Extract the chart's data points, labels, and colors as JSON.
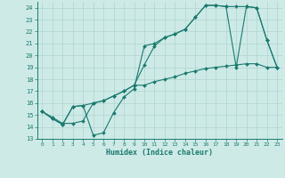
{
  "xlabel": "Humidex (Indice chaleur)",
  "bg_color": "#cdeae7",
  "line_color": "#1a7a6e",
  "grid_color": "#afd4cf",
  "xlim": [
    -0.5,
    23.5
  ],
  "ylim": [
    13,
    24.5
  ],
  "yticks": [
    13,
    14,
    15,
    16,
    17,
    18,
    19,
    20,
    21,
    22,
    23,
    24
  ],
  "xticks": [
    0,
    1,
    2,
    3,
    4,
    5,
    6,
    7,
    8,
    9,
    10,
    11,
    12,
    13,
    14,
    15,
    16,
    17,
    18,
    19,
    20,
    21,
    22,
    23
  ],
  "series1_x": [
    0,
    1,
    2,
    3,
    4,
    5,
    6,
    7,
    8,
    9,
    10,
    11,
    12,
    13,
    14,
    15,
    16,
    17,
    18,
    19,
    20,
    21,
    22,
    23
  ],
  "series1_y": [
    15.3,
    14.7,
    14.2,
    15.7,
    15.8,
    13.3,
    13.5,
    15.2,
    16.5,
    17.2,
    20.8,
    21.0,
    21.5,
    21.8,
    22.2,
    23.2,
    24.2,
    24.2,
    24.1,
    19.0,
    24.1,
    24.0,
    21.3,
    19.0
  ],
  "series2_x": [
    0,
    1,
    2,
    3,
    4,
    5,
    6,
    7,
    8,
    9,
    10,
    11,
    12,
    13,
    14,
    15,
    16,
    17,
    18,
    19,
    20,
    21,
    22,
    23
  ],
  "series2_y": [
    15.3,
    14.7,
    14.2,
    15.7,
    15.8,
    16.0,
    16.2,
    16.6,
    17.0,
    17.5,
    19.2,
    20.8,
    21.5,
    21.8,
    22.2,
    23.2,
    24.2,
    24.2,
    24.1,
    24.1,
    24.1,
    24.0,
    21.3,
    19.0
  ],
  "series3_x": [
    0,
    1,
    2,
    3,
    4,
    5,
    6,
    7,
    8,
    9,
    10,
    11,
    12,
    13,
    14,
    15,
    16,
    17,
    18,
    19,
    20,
    21,
    22,
    23
  ],
  "series3_y": [
    15.3,
    14.8,
    14.3,
    14.3,
    14.5,
    16.0,
    16.2,
    16.6,
    17.0,
    17.5,
    17.5,
    17.8,
    18.0,
    18.2,
    18.5,
    18.7,
    18.9,
    19.0,
    19.1,
    19.2,
    19.3,
    19.3,
    19.0,
    19.0
  ]
}
